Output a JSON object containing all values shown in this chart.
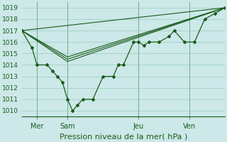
{
  "bg_color": "#cce8e8",
  "grid_color": "#99ccbb",
  "line_color": "#1a5c1a",
  "title": "Pression niveau de la mer( hPa )",
  "ylim": [
    1009.5,
    1019.5
  ],
  "yticks": [
    1010,
    1011,
    1012,
    1013,
    1014,
    1015,
    1016,
    1017,
    1018,
    1019
  ],
  "xlim": [
    0,
    20
  ],
  "xtick_positions": [
    1.5,
    4.5,
    11.5,
    16.5
  ],
  "xtick_labels": [
    "Mer",
    "Sam",
    "Jeu",
    "Ven"
  ],
  "vline_positions": [
    1.5,
    4.5,
    11.5,
    16.5
  ],
  "series_main_x": [
    0.0,
    1.0,
    1.5,
    2.5,
    3.0,
    3.5,
    4.0,
    4.5,
    5.0,
    5.5,
    6.0,
    7.0,
    8.0,
    9.0,
    9.5,
    10.0,
    11.0,
    11.5,
    12.0,
    12.5,
    13.5,
    14.5,
    15.0,
    16.0,
    17.0,
    18.0,
    19.0,
    20.0
  ],
  "series_main_y": [
    1017.0,
    1015.5,
    1014.0,
    1014.0,
    1013.5,
    1013.0,
    1012.5,
    1011.0,
    1010.0,
    1010.5,
    1011.0,
    1011.0,
    1013.0,
    1013.0,
    1014.0,
    1014.0,
    1016.0,
    1016.0,
    1015.7,
    1016.0,
    1016.0,
    1016.5,
    1017.0,
    1016.0,
    1016.0,
    1018.0,
    1018.5,
    1019.0
  ],
  "series2_x": [
    0.0,
    20.0
  ],
  "series2_y": [
    1017.0,
    1019.0
  ],
  "series3_x": [
    0.0,
    4.5,
    20.0
  ],
  "series3_y": [
    1017.0,
    1014.3,
    1019.0
  ],
  "series4_x": [
    0.0,
    4.5,
    20.0
  ],
  "series4_y": [
    1017.0,
    1014.5,
    1019.0
  ],
  "series5_x": [
    0.0,
    4.5,
    20.0
  ],
  "series5_y": [
    1017.0,
    1014.7,
    1019.0
  ]
}
